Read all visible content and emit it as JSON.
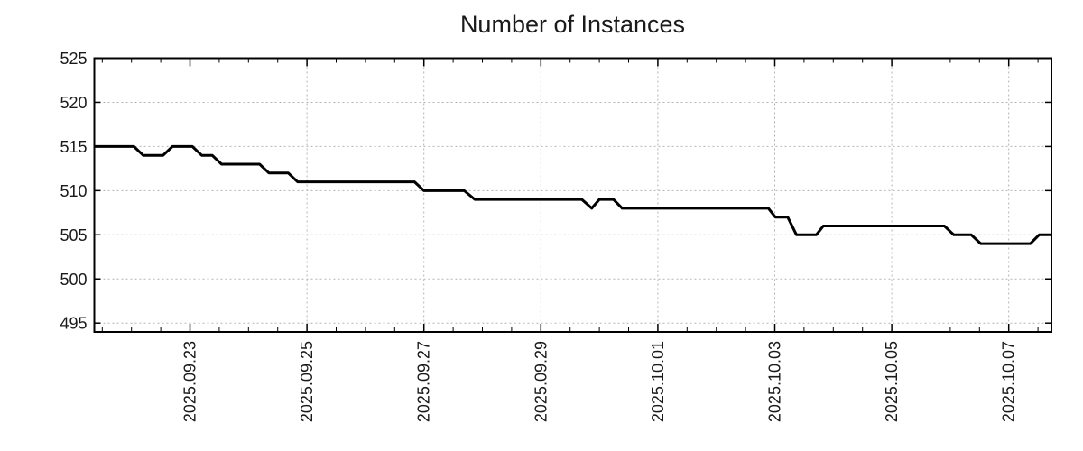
{
  "page": {
    "background": "#ffffff"
  },
  "chart_data": {
    "type": "line",
    "title": "Number of Instances",
    "xlabel": "",
    "ylabel": "",
    "legend": "none",
    "grid": true,
    "x_unit": "days relative to 2025-09-23 00:00",
    "x_range": [
      -1.636,
      14.73
    ],
    "y_range": [
      494,
      525
    ],
    "x_ticks": [
      {
        "t": 0,
        "label": "2025.09.23"
      },
      {
        "t": 2,
        "label": "2025.09.25"
      },
      {
        "t": 4,
        "label": "2025.09.27"
      },
      {
        "t": 6,
        "label": "2025.09.29"
      },
      {
        "t": 8,
        "label": "2025.10.01"
      },
      {
        "t": 10,
        "label": "2025.10.03"
      },
      {
        "t": 12,
        "label": "2025.10.05"
      },
      {
        "t": 14,
        "label": "2025.10.07"
      }
    ],
    "x_minor_tick_step_days": 0.5,
    "x_major_tick_step_days": 2,
    "y_ticks": [
      495,
      500,
      505,
      510,
      515,
      520,
      525
    ],
    "series": [
      {
        "name": "instances",
        "color": "#000000",
        "stroke_width": 3,
        "points": [
          [
            -1.636,
            515
          ],
          [
            -0.96,
            515
          ],
          [
            -0.8,
            514
          ],
          [
            -0.46,
            514
          ],
          [
            -0.3,
            515
          ],
          [
            0.04,
            515
          ],
          [
            0.2,
            514
          ],
          [
            0.38,
            514
          ],
          [
            0.54,
            513
          ],
          [
            1.19,
            513
          ],
          [
            1.35,
            512
          ],
          [
            1.68,
            512
          ],
          [
            1.84,
            511
          ],
          [
            3.84,
            511
          ],
          [
            4.0,
            510
          ],
          [
            4.69,
            510
          ],
          [
            4.87,
            509
          ],
          [
            6.7,
            509
          ],
          [
            6.87,
            508
          ],
          [
            7.0,
            509
          ],
          [
            7.24,
            509
          ],
          [
            7.39,
            508
          ],
          [
            9.89,
            508
          ],
          [
            10.01,
            507
          ],
          [
            10.22,
            507
          ],
          [
            10.37,
            505
          ],
          [
            10.71,
            505
          ],
          [
            10.83,
            506
          ],
          [
            12.9,
            506
          ],
          [
            13.06,
            505
          ],
          [
            13.36,
            505
          ],
          [
            13.52,
            504
          ],
          [
            14.37,
            504
          ],
          [
            14.52,
            505
          ],
          [
            14.73,
            505
          ]
        ]
      }
    ],
    "colors": {
      "line": "#000000",
      "grid": "#b3b3b3",
      "axis": "#000000",
      "text": "#1a1a1a",
      "background": "#ffffff"
    }
  }
}
